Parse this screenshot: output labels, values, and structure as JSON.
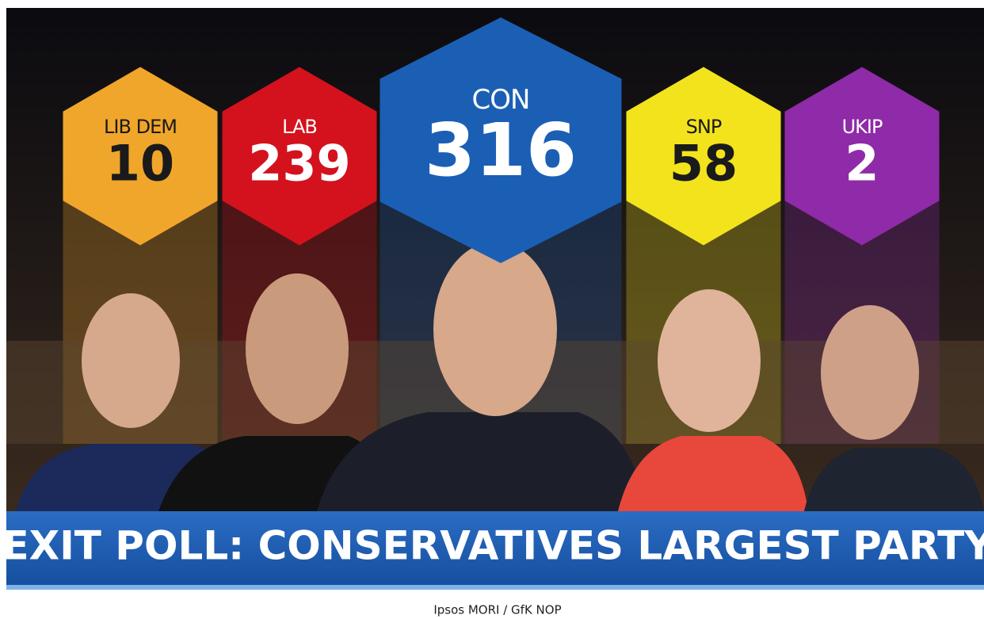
{
  "parties": [
    {
      "name": "LIB DEM",
      "seats": 10,
      "color": "#f0a62b",
      "text_color": "#1a1a1a"
    },
    {
      "name": "LAB",
      "seats": 239,
      "color": "#d3121d",
      "text_color": "#ffffff"
    },
    {
      "name": "CON",
      "seats": 316,
      "color": "#1b5fb5",
      "text_color": "#ffffff"
    },
    {
      "name": "SNP",
      "seats": 58,
      "color": "#f3e31c",
      "text_color": "#1a1a1a"
    },
    {
      "name": "UKIP",
      "seats": 2,
      "color": "#8f2aa8",
      "text_color": "#ffffff"
    }
  ],
  "headline": "EXIT POLL: CONSERVATIVES LARGEST PARTY",
  "source": "Ipsos MORI / GfK NOP"
}
